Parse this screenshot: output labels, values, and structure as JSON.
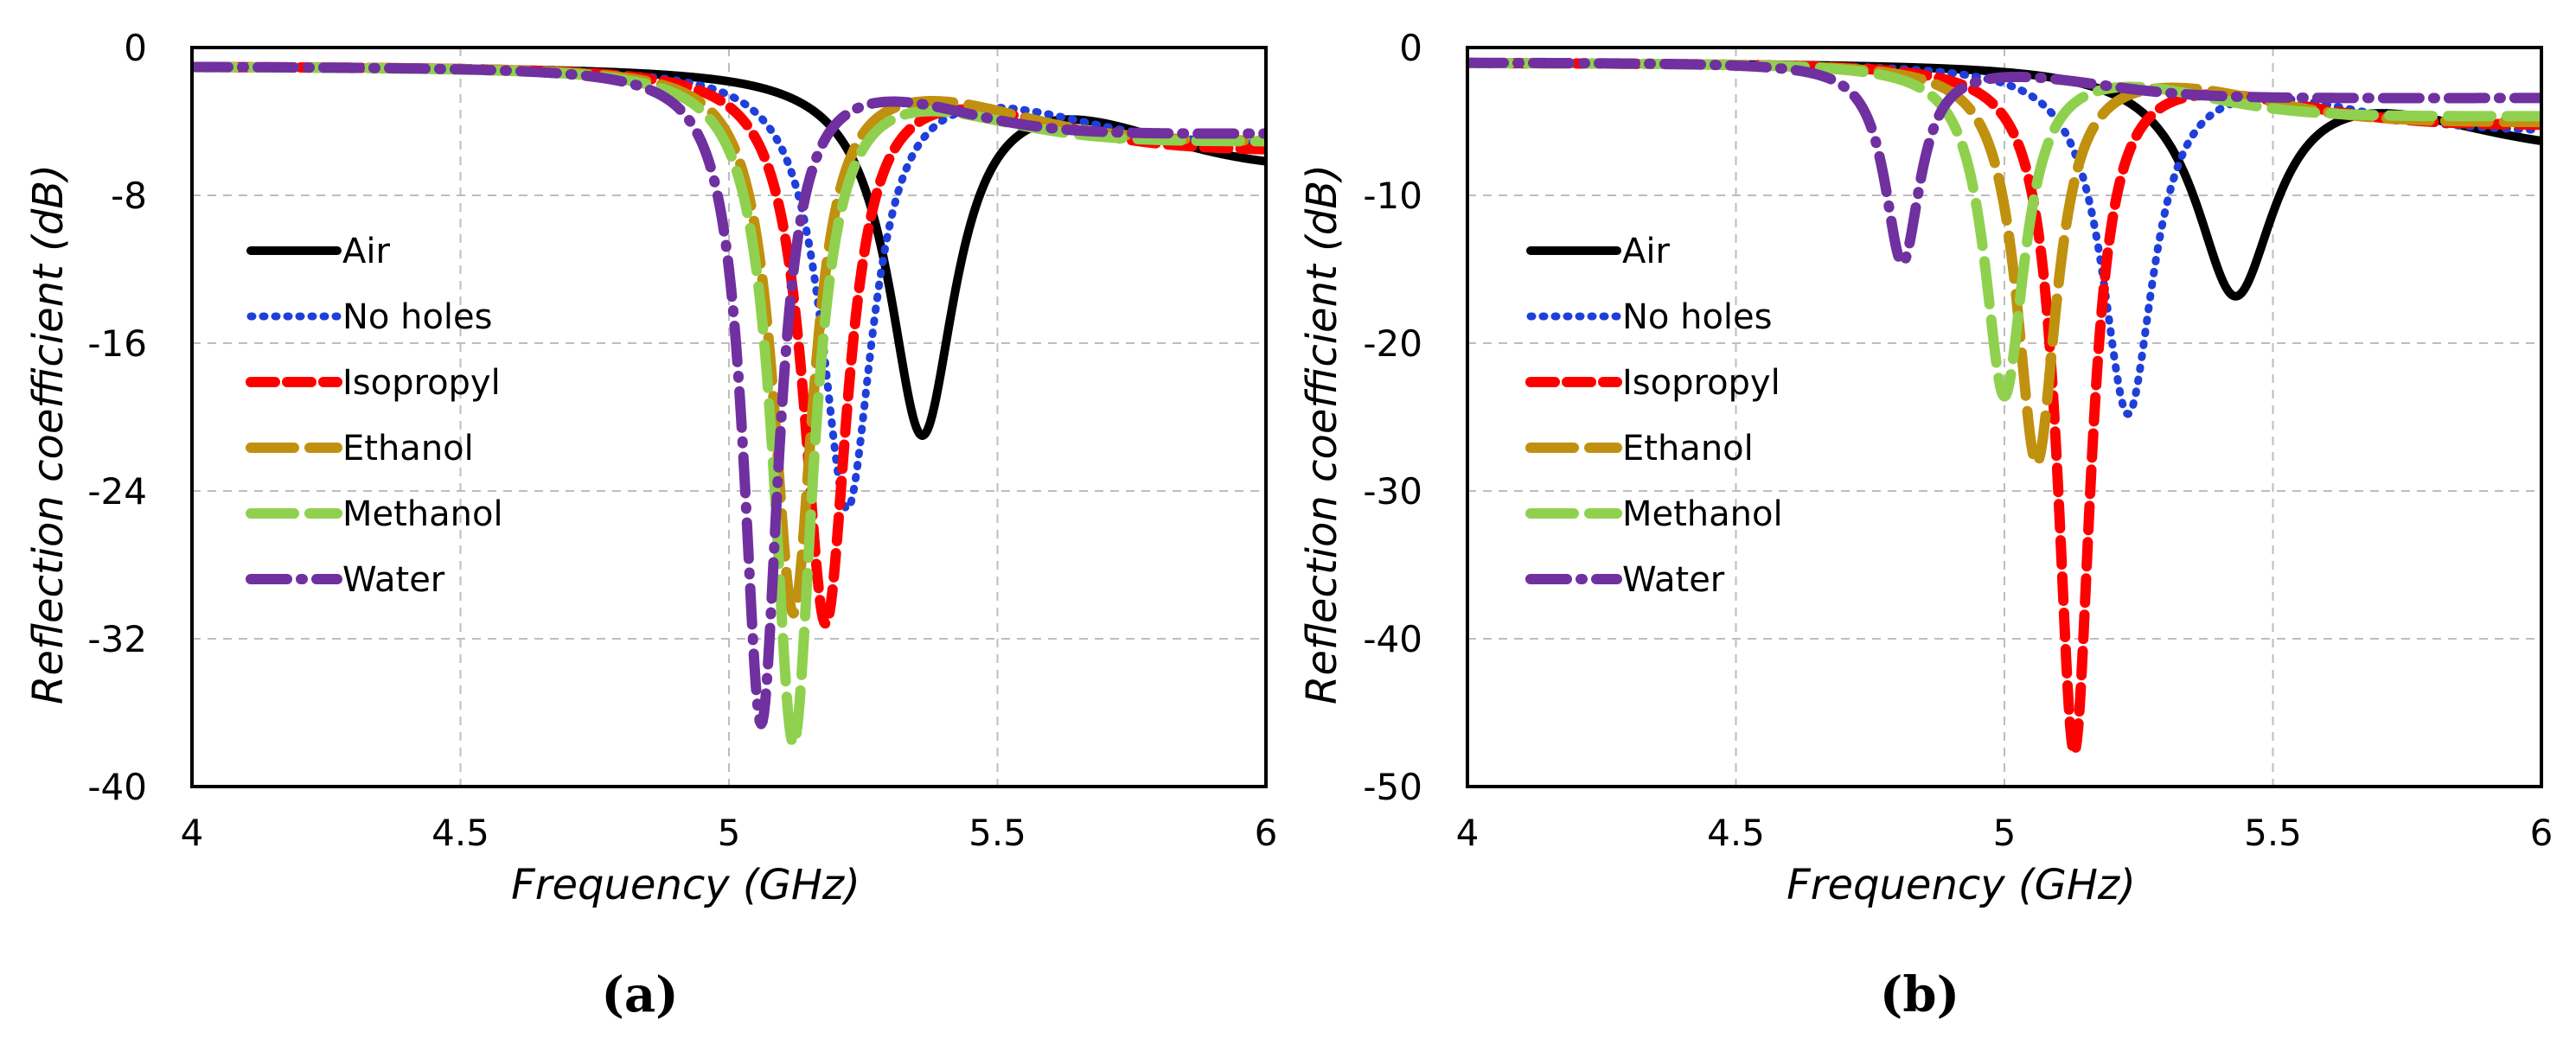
{
  "chart_data": [
    {
      "type": "line",
      "panel_label": "(a)",
      "xlabel": "Frequency (GHz)",
      "ylabel": "Reflection coefficient (dB)",
      "xlim": [
        4,
        6
      ],
      "ylim": [
        -40,
        0
      ],
      "xticks": [
        4,
        4.5,
        5,
        5.5,
        6
      ],
      "xtick_labels": [
        "4",
        "4.5",
        "5",
        "5.5",
        "6"
      ],
      "yticks": [
        0,
        -8,
        -16,
        -24,
        -32,
        -40
      ],
      "ytick_labels": [
        "0",
        "-8",
        "-16",
        "-24",
        "-32",
        "-40"
      ],
      "grid": true,
      "legend_position": "left",
      "series": [
        {
          "name": "Air",
          "color": "#000000",
          "style": "solid",
          "f0": 5.36,
          "min": -20.8,
          "width": 0.075,
          "base": -1.0,
          "tail": -6.5,
          "tail_center": 5.75,
          "tail_width": 0.12
        },
        {
          "name": "No holes",
          "color": "#1f3fdb",
          "style": "dotted",
          "f0": 5.22,
          "min": -24.8,
          "width": 0.058,
          "base": -1.0,
          "tail": -5.2,
          "tail_center": 5.6,
          "tail_width": 0.12
        },
        {
          "name": "Isopropyl",
          "color": "#ff0000",
          "style": "dashed",
          "f0": 5.18,
          "min": -31.0,
          "width": 0.05,
          "base": -1.0,
          "tail": -5.5,
          "tail_center": 5.55,
          "tail_width": 0.12
        },
        {
          "name": "Ethanol",
          "color": "#c0900f",
          "style": "longdash",
          "f0": 5.12,
          "min": -30.5,
          "width": 0.046,
          "base": -1.0,
          "tail": -5.0,
          "tail_center": 5.5,
          "tail_width": 0.11
        },
        {
          "name": "Methanol",
          "color": "#8fd14f",
          "style": "longdash",
          "f0": 5.12,
          "min": -37.5,
          "width": 0.045,
          "base": -1.0,
          "tail": -5.0,
          "tail_center": 5.45,
          "tail_width": 0.11
        },
        {
          "name": "Water",
          "color": "#7030a0",
          "style": "dashdot",
          "f0": 5.06,
          "min": -36.5,
          "width": 0.04,
          "base": -1.0,
          "tail": -4.6,
          "tail_center": 5.4,
          "tail_width": 0.1
        }
      ]
    },
    {
      "type": "line",
      "panel_label": "(b)",
      "xlabel": "Frequency (GHz)",
      "ylabel": "Reflection coefficient (dB)",
      "xlim": [
        4,
        6
      ],
      "ylim": [
        -50,
        0
      ],
      "xticks": [
        4,
        4.5,
        5,
        5.5,
        6
      ],
      "xtick_labels": [
        "4",
        "4.5",
        "5",
        "5.5",
        "6"
      ],
      "yticks": [
        0,
        -10,
        -20,
        -30,
        -40,
        -50
      ],
      "ytick_labels": [
        "0",
        "-10",
        "-20",
        "-30",
        "-40",
        "-50"
      ],
      "grid": true,
      "legend_position": "left",
      "series": [
        {
          "name": "Air",
          "color": "#000000",
          "style": "solid",
          "f0": 5.43,
          "min": -16.5,
          "width": 0.09,
          "base": -1.0,
          "tail": -7.0,
          "tail_center": 5.8,
          "tail_width": 0.13
        },
        {
          "name": "No holes",
          "color": "#1f3fdb",
          "style": "dotted",
          "f0": 5.23,
          "min": -24.6,
          "width": 0.058,
          "base": -1.0,
          "tail": -5.6,
          "tail_center": 5.6,
          "tail_width": 0.12
        },
        {
          "name": "Isopropyl",
          "color": "#ff0000",
          "style": "dashed",
          "f0": 5.13,
          "min": -47.5,
          "width": 0.038,
          "base": -1.0,
          "tail": -5.2,
          "tail_center": 5.5,
          "tail_width": 0.12
        },
        {
          "name": "Ethanol",
          "color": "#c0900f",
          "style": "longdash",
          "f0": 5.06,
          "min": -28.0,
          "width": 0.045,
          "base": -1.0,
          "tail": -5.0,
          "tail_center": 5.45,
          "tail_width": 0.11
        },
        {
          "name": "Methanol",
          "color": "#8fd14f",
          "style": "longdash",
          "f0": 5.0,
          "min": -23.5,
          "width": 0.045,
          "base": -1.0,
          "tail": -4.6,
          "tail_center": 5.35,
          "tail_width": 0.1
        },
        {
          "name": "Water",
          "color": "#7030a0",
          "style": "dashdot",
          "f0": 4.81,
          "min": -14.5,
          "width": 0.04,
          "base": -1.0,
          "tail": -3.4,
          "tail_center": 5.15,
          "tail_width": 0.1
        }
      ]
    }
  ]
}
